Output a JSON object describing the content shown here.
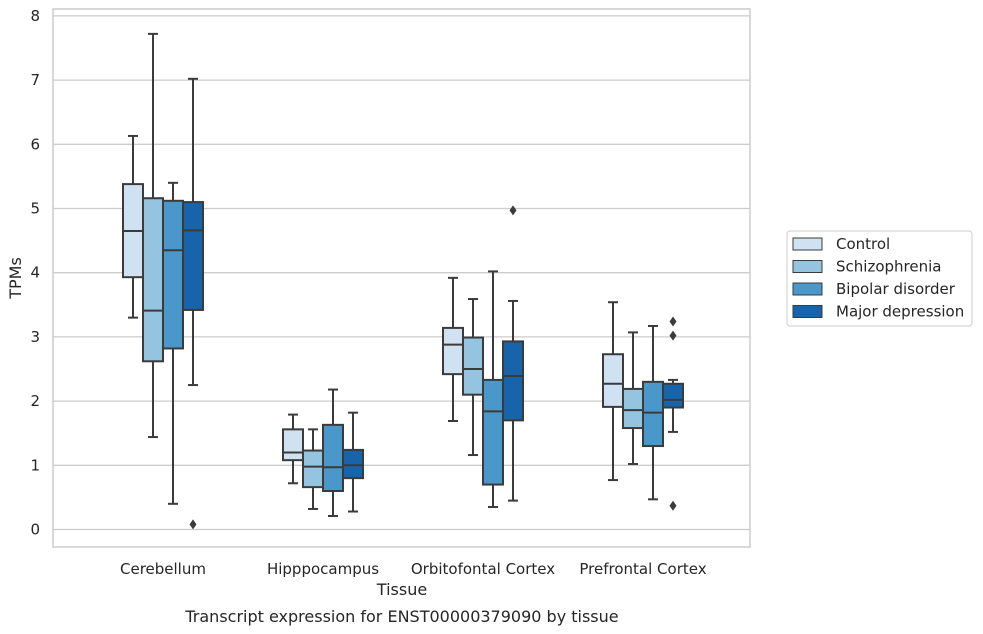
{
  "caption": "Transcript expression for ENST00000379090 by tissue",
  "chart_data": {
    "type": "box",
    "xlabel": "Tissue",
    "ylabel": "TPMs",
    "ylim": [
      -0.3,
      8.1
    ],
    "yticks": [
      0,
      1,
      2,
      3,
      4,
      5,
      6,
      7,
      8
    ],
    "grid": true,
    "legend_position": "right",
    "categories": [
      "Cerebellum",
      "Hipppocampus",
      "Orbitofontal Cortex",
      "Prefrontal Cortex"
    ],
    "series": [
      {
        "name": "Control",
        "color": "#d0e1f2",
        "boxes": [
          {
            "whislo": 3.3,
            "q1": 3.93,
            "med": 4.65,
            "q3": 5.38,
            "whishi": 6.13,
            "fliers": []
          },
          {
            "whislo": 0.72,
            "q1": 1.08,
            "med": 1.2,
            "q3": 1.56,
            "whishi": 1.79,
            "fliers": []
          },
          {
            "whislo": 1.69,
            "q1": 2.42,
            "med": 2.88,
            "q3": 3.14,
            "whishi": 3.92,
            "fliers": []
          },
          {
            "whislo": 0.77,
            "q1": 1.91,
            "med": 2.27,
            "q3": 2.73,
            "whishi": 3.54,
            "fliers": []
          }
        ]
      },
      {
        "name": "Schizophrenia",
        "color": "#94c4df",
        "boxes": [
          {
            "whislo": 1.44,
            "q1": 2.62,
            "med": 3.41,
            "q3": 5.16,
            "whishi": 7.72,
            "fliers": []
          },
          {
            "whislo": 0.32,
            "q1": 0.66,
            "med": 0.98,
            "q3": 1.23,
            "whishi": 1.56,
            "fliers": []
          },
          {
            "whislo": 1.16,
            "q1": 2.1,
            "med": 2.5,
            "q3": 2.99,
            "whishi": 3.59,
            "fliers": []
          },
          {
            "whislo": 1.02,
            "q1": 1.58,
            "med": 1.86,
            "q3": 2.19,
            "whishi": 3.07,
            "fliers": []
          }
        ]
      },
      {
        "name": "Bipolar disorder",
        "color": "#4a98c9",
        "boxes": [
          {
            "whislo": 0.4,
            "q1": 2.82,
            "med": 4.35,
            "q3": 5.12,
            "whishi": 5.4,
            "fliers": []
          },
          {
            "whislo": 0.21,
            "q1": 0.6,
            "med": 0.97,
            "q3": 1.63,
            "whishi": 2.18,
            "fliers": []
          },
          {
            "whislo": 0.35,
            "q1": 0.7,
            "med": 1.84,
            "q3": 2.33,
            "whishi": 4.02,
            "fliers": []
          },
          {
            "whislo": 0.47,
            "q1": 1.3,
            "med": 1.82,
            "q3": 2.3,
            "whishi": 3.17,
            "fliers": []
          }
        ]
      },
      {
        "name": "Major depression",
        "color": "#1764ab",
        "boxes": [
          {
            "whislo": 2.25,
            "q1": 3.42,
            "med": 4.66,
            "q3": 5.1,
            "whishi": 7.02,
            "fliers": [
              0.08
            ]
          },
          {
            "whislo": 0.28,
            "q1": 0.8,
            "med": 1.0,
            "q3": 1.24,
            "whishi": 1.82,
            "fliers": []
          },
          {
            "whislo": 0.45,
            "q1": 1.7,
            "med": 2.39,
            "q3": 2.93,
            "whishi": 3.56,
            "fliers": [
              4.97
            ]
          },
          {
            "whislo": 1.52,
            "q1": 1.9,
            "med": 2.02,
            "q3": 2.27,
            "whishi": 2.33,
            "fliers": [
              3.24,
              3.02,
              0.37
            ]
          }
        ]
      }
    ]
  }
}
